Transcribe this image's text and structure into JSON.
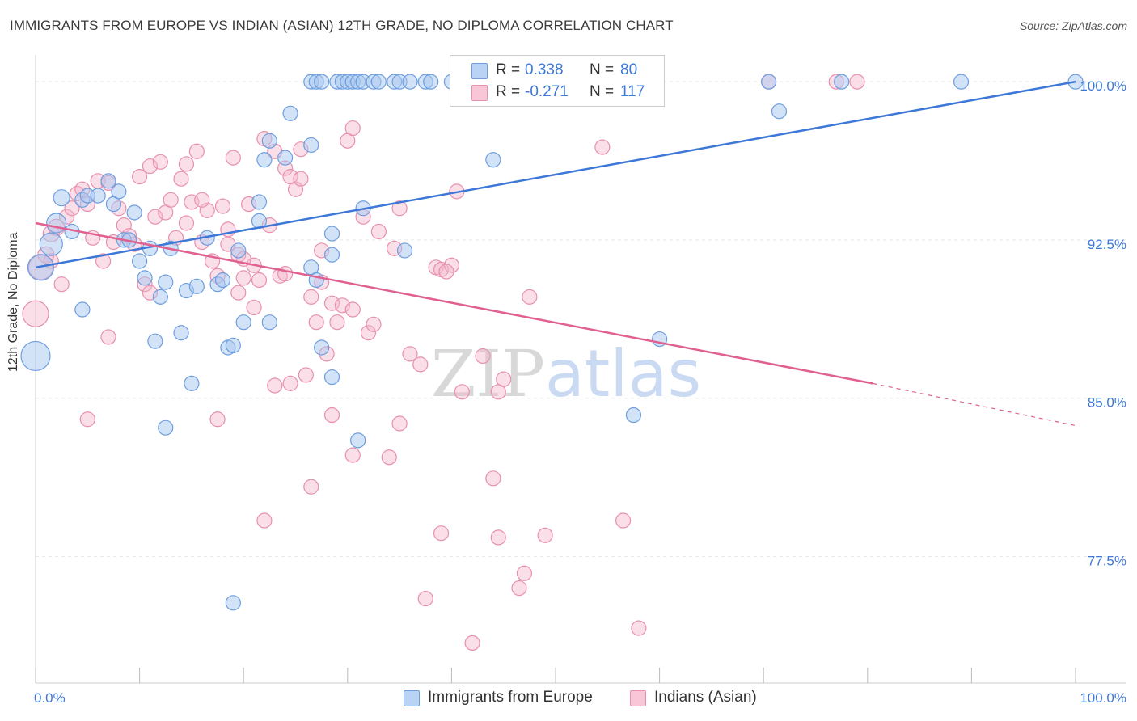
{
  "title": "IMMIGRANTS FROM EUROPE VS INDIAN (ASIAN) 12TH GRADE, NO DIPLOMA CORRELATION CHART",
  "source": "Source: ZipAtlas.com",
  "watermark": "ZIPatlas",
  "stats": {
    "series1": {
      "r_label": "R =",
      "r_value": "0.338",
      "n_label": "N =",
      "n_value": "80"
    },
    "series2": {
      "r_label": "R =",
      "r_value": "-0.271",
      "n_label": "N =",
      "n_value": "117"
    }
  },
  "legend": {
    "series1": "Immigrants from Europe",
    "series2": "Indians (Asian)"
  },
  "colors": {
    "blue": "#3d78d8",
    "blue_fill": "#a8c8f0",
    "pink": "#e06090",
    "pink_fill": "#f5b8cc",
    "grid": "#e6e6e6",
    "axis_tick_text": "#3d78d8"
  },
  "chart_data": {
    "type": "scatter",
    "title": "IMMIGRANTS FROM EUROPE VS INDIAN (ASIAN) 12TH GRADE, NO DIPLOMA CORRELATION CHART",
    "xlabel": "",
    "ylabel": "12th Grade, No Diploma",
    "xlim": [
      0,
      100
    ],
    "ylim": [
      71.5,
      101.5
    ],
    "x_tick_labels": [
      "0.0%",
      "100.0%"
    ],
    "y_ticks": [
      100.0,
      92.5,
      85.0,
      77.5
    ],
    "y_tick_labels": [
      "100.0%",
      "92.5%",
      "85.0%",
      "77.5%"
    ],
    "grid": true,
    "series": [
      {
        "name": "Immigrants from Europe",
        "color": "#3d78d8",
        "R": 0.338,
        "N": 80,
        "trend": {
          "x": [
            0,
            100
          ],
          "y": [
            91.2,
            100.0
          ],
          "style": "solid"
        },
        "points": [
          [
            0,
            87.0,
            18
          ],
          [
            0.5,
            91.2,
            16
          ],
          [
            1.5,
            92.3,
            14
          ],
          [
            2,
            93.3,
            12
          ],
          [
            2.5,
            94.5,
            10
          ],
          [
            3.5,
            92.9,
            9
          ],
          [
            4.5,
            94.4,
            9
          ],
          [
            5,
            94.6,
            9
          ],
          [
            6,
            94.6,
            9
          ],
          [
            7,
            95.3,
            9
          ],
          [
            7.5,
            94.2,
            9
          ],
          [
            8,
            94.8,
            9
          ],
          [
            8.5,
            92.5,
            9
          ],
          [
            9,
            92.5,
            9
          ],
          [
            9.5,
            93.8,
            9
          ],
          [
            10,
            91.5,
            9
          ],
          [
            10.5,
            90.7,
            9
          ],
          [
            11,
            92.1,
            9
          ],
          [
            11.5,
            87.7,
            9
          ],
          [
            12,
            89.8,
            9
          ],
          [
            12.5,
            90.5,
            9
          ],
          [
            13,
            92.1,
            9
          ],
          [
            14,
            88.1,
            9
          ],
          [
            14.5,
            90.1,
            9
          ],
          [
            15,
            85.7,
            9
          ],
          [
            15.5,
            90.3,
            9
          ],
          [
            16.5,
            92.6,
            9
          ],
          [
            17.5,
            90.4,
            9
          ],
          [
            18,
            90.6,
            9
          ],
          [
            18.5,
            87.4,
            9
          ],
          [
            19,
            87.5,
            9
          ],
          [
            19.5,
            92.0,
            9
          ],
          [
            20,
            88.6,
            9
          ],
          [
            21.5,
            94.3,
            9
          ],
          [
            21.5,
            93.4,
            9
          ],
          [
            22,
            96.3,
            9
          ],
          [
            22.5,
            97.2,
            9
          ],
          [
            22.5,
            88.6,
            9
          ],
          [
            24,
            96.4,
            9
          ],
          [
            24.5,
            98.5,
            9
          ],
          [
            26.5,
            100.0,
            9
          ],
          [
            27,
            100.0,
            9
          ],
          [
            27.5,
            100.0,
            9
          ],
          [
            29,
            100.0,
            9
          ],
          [
            29.5,
            100.0,
            9
          ],
          [
            30,
            100.0,
            9
          ],
          [
            30.5,
            100.0,
            9
          ],
          [
            31,
            100.0,
            9
          ],
          [
            31.5,
            100.0,
            9
          ],
          [
            32.5,
            100.0,
            9
          ],
          [
            33,
            100.0,
            9
          ],
          [
            34.5,
            100.0,
            9
          ],
          [
            35,
            100.0,
            9
          ],
          [
            36,
            100.0,
            9
          ],
          [
            37.5,
            100.0,
            9
          ],
          [
            38,
            100.0,
            9
          ],
          [
            40,
            100.0,
            9
          ],
          [
            43.5,
            100.0,
            9
          ],
          [
            47.5,
            100.0,
            9
          ],
          [
            70.5,
            100.0,
            9
          ],
          [
            77.5,
            100.0,
            9
          ],
          [
            89,
            100.0,
            9
          ],
          [
            100,
            100.0,
            9
          ],
          [
            26.5,
            97.0,
            9
          ],
          [
            27.5,
            87.4,
            9
          ],
          [
            28.5,
            92.8,
            9
          ],
          [
            28.5,
            86.0,
            9
          ],
          [
            28.5,
            91.8,
            9
          ],
          [
            26.5,
            91.2,
            9
          ],
          [
            27,
            90.6,
            9
          ],
          [
            31.5,
            94.0,
            9
          ],
          [
            35.5,
            92.0,
            9
          ],
          [
            31,
            83.0,
            9
          ],
          [
            12.5,
            83.6,
            9
          ],
          [
            19,
            75.3,
            9
          ],
          [
            4.5,
            89.2,
            9
          ],
          [
            44,
            96.3,
            9
          ],
          [
            57.5,
            84.2,
            9
          ],
          [
            60,
            87.8,
            9
          ],
          [
            71.5,
            98.6,
            9
          ]
        ]
      },
      {
        "name": "Indians (Asian)",
        "color": "#e06090",
        "R": -0.271,
        "N": 117,
        "trend": {
          "x": [
            0,
            80.5,
            100
          ],
          "y": [
            93.3,
            85.7,
            83.7
          ],
          "style": "solid-then-dashed"
        },
        "points": [
          [
            0,
            89.0,
            16
          ],
          [
            0.5,
            91.2,
            15
          ],
          [
            1,
            91.8,
            10
          ],
          [
            1.5,
            92.8,
            10
          ],
          [
            2,
            93.1,
            10
          ],
          [
            2.5,
            90.4,
            9
          ],
          [
            3,
            93.6,
            9
          ],
          [
            3.5,
            94.0,
            9
          ],
          [
            4,
            94.7,
            9
          ],
          [
            4.5,
            94.9,
            9
          ],
          [
            5,
            94.2,
            9
          ],
          [
            5.5,
            92.6,
            9
          ],
          [
            6,
            95.3,
            9
          ],
          [
            6.5,
            91.5,
            9
          ],
          [
            7,
            95.2,
            9
          ],
          [
            7.5,
            92.4,
            9
          ],
          [
            8,
            94.0,
            9
          ],
          [
            8.5,
            93.2,
            9
          ],
          [
            9,
            92.7,
            9
          ],
          [
            9.5,
            92.3,
            9
          ],
          [
            10,
            95.5,
            9
          ],
          [
            10.5,
            90.4,
            9
          ],
          [
            11,
            96.0,
            9
          ],
          [
            11.5,
            93.6,
            9
          ],
          [
            12,
            96.2,
            9
          ],
          [
            12.5,
            93.8,
            9
          ],
          [
            13,
            94.4,
            9
          ],
          [
            13.5,
            92.6,
            9
          ],
          [
            14,
            95.4,
            9
          ],
          [
            14.5,
            93.3,
            9
          ],
          [
            15,
            94.3,
            9
          ],
          [
            15.5,
            96.7,
            9
          ],
          [
            16,
            92.4,
            9
          ],
          [
            16.5,
            93.9,
            9
          ],
          [
            17,
            91.5,
            9
          ],
          [
            17.5,
            90.8,
            9
          ],
          [
            18,
            94.1,
            9
          ],
          [
            18.5,
            93.0,
            9
          ],
          [
            19,
            96.4,
            9
          ],
          [
            19.5,
            91.8,
            9
          ],
          [
            20,
            90.7,
            9
          ],
          [
            20.5,
            94.2,
            9
          ],
          [
            21,
            91.3,
            9
          ],
          [
            21.5,
            90.6,
            9
          ],
          [
            22,
            97.3,
            9
          ],
          [
            22.5,
            93.2,
            9
          ],
          [
            23,
            96.7,
            9
          ],
          [
            23.5,
            90.8,
            9
          ],
          [
            24,
            95.9,
            9
          ],
          [
            24.5,
            95.5,
            9
          ],
          [
            25,
            94.9,
            9
          ],
          [
            25.5,
            96.8,
            9
          ],
          [
            26.5,
            89.8,
            9
          ],
          [
            27,
            88.6,
            9
          ],
          [
            27.5,
            92.0,
            9
          ],
          [
            28,
            87.1,
            9
          ],
          [
            28.5,
            89.5,
            9
          ],
          [
            29,
            88.6,
            9
          ],
          [
            30,
            97.2,
            9
          ],
          [
            30.5,
            97.8,
            9
          ],
          [
            31.5,
            93.6,
            9
          ],
          [
            32,
            88.1,
            9
          ],
          [
            33,
            92.9,
            9
          ],
          [
            34.5,
            92.1,
            9
          ],
          [
            35,
            94.0,
            9
          ],
          [
            36,
            87.1,
            9
          ],
          [
            37,
            86.6,
            9
          ],
          [
            38.5,
            91.2,
            9
          ],
          [
            39,
            91.1,
            9
          ],
          [
            40,
            91.3,
            9
          ],
          [
            40.5,
            94.8,
            9
          ],
          [
            41,
            85.3,
            9
          ],
          [
            43,
            87.0,
            9
          ],
          [
            44.5,
            85.3,
            9
          ],
          [
            45,
            85.9,
            9
          ],
          [
            47.5,
            89.8,
            9
          ],
          [
            54.5,
            96.9,
            9
          ],
          [
            1.5,
            91.5,
            9
          ],
          [
            5,
            84.0,
            9
          ],
          [
            7,
            87.9,
            9
          ],
          [
            11,
            90.0,
            9
          ],
          [
            17.5,
            84.0,
            9
          ],
          [
            22,
            79.2,
            9
          ],
          [
            24.5,
            85.7,
            9
          ],
          [
            26,
            86.1,
            9
          ],
          [
            26.5,
            80.8,
            9
          ],
          [
            28.5,
            84.2,
            9
          ],
          [
            30.5,
            82.3,
            9
          ],
          [
            34,
            82.2,
            9
          ],
          [
            35,
            83.8,
            9
          ],
          [
            37.5,
            75.5,
            9
          ],
          [
            39,
            78.6,
            9
          ],
          [
            42,
            73.4,
            9
          ],
          [
            44,
            81.2,
            9
          ],
          [
            44.5,
            78.4,
            9
          ],
          [
            46.5,
            76.0,
            9
          ],
          [
            47,
            76.7,
            9
          ],
          [
            49,
            78.5,
            9
          ],
          [
            56.5,
            79.2,
            9
          ],
          [
            58,
            74.1,
            9
          ],
          [
            70.5,
            100.0,
            9
          ],
          [
            77,
            100.0,
            9
          ],
          [
            79,
            100.0,
            9
          ],
          [
            20,
            91.6,
            9
          ],
          [
            21,
            89.3,
            9
          ],
          [
            23,
            85.6,
            9
          ],
          [
            24,
            90.9,
            9
          ],
          [
            18.5,
            92.3,
            9
          ],
          [
            19.5,
            90.0,
            9
          ],
          [
            29.5,
            89.4,
            9
          ],
          [
            30.5,
            89.2,
            9
          ],
          [
            32.5,
            88.5,
            9
          ],
          [
            39.5,
            91.0,
            9
          ],
          [
            27.5,
            90.5,
            9
          ],
          [
            25.5,
            95.4,
            9
          ],
          [
            14.5,
            96.1,
            9
          ],
          [
            16,
            94.4,
            9
          ]
        ]
      }
    ]
  }
}
